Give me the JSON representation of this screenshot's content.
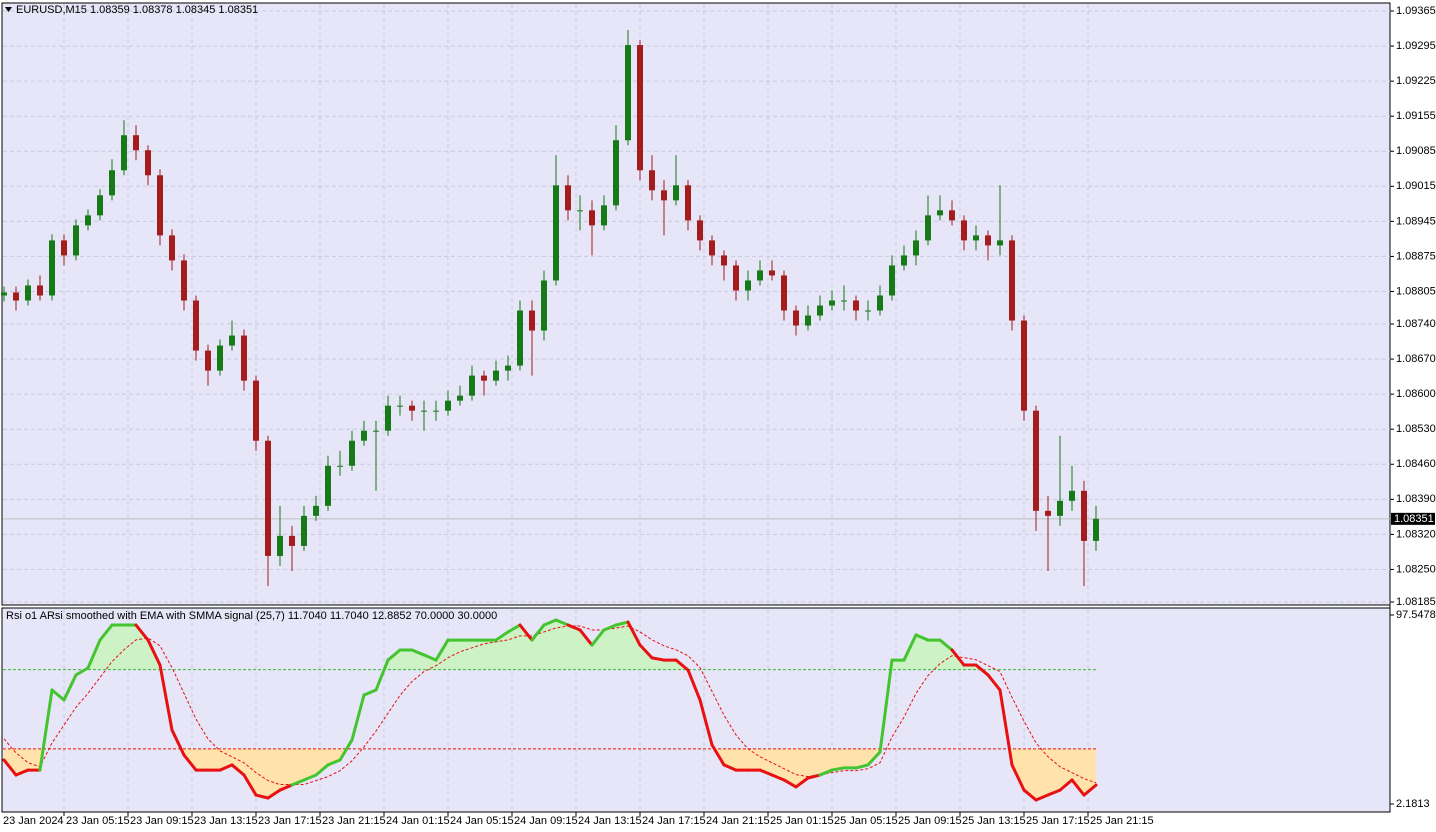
{
  "chart_data": [
    {
      "type": "candlestick",
      "title": "EURUSD,M15  1.08359 1.08378 1.08345 1.08351",
      "open": [
        1.08797,
        1.08803,
        1.08787,
        1.08817,
        1.08797,
        1.08907,
        1.08877,
        1.08937,
        1.08957,
        1.08997,
        1.09047,
        1.09117,
        1.09087,
        1.09037,
        1.08917,
        1.08867,
        1.08787,
        1.08687,
        1.08647,
        1.08697,
        1.08717,
        1.08627,
        1.08507,
        1.08277,
        1.08317,
        1.08297,
        1.08357,
        1.08377,
        1.08457,
        1.08457,
        1.08507,
        1.08527,
        1.08527,
        1.08577,
        1.08577,
        1.08567,
        1.08567,
        1.08567,
        1.08587,
        1.08597,
        1.08637,
        1.08627,
        1.08647,
        1.08657,
        1.08767,
        1.08727,
        1.08827,
        1.09017,
        1.08967,
        1.08967,
        1.08937,
        1.08977,
        1.09107,
        1.09297,
        1.09047,
        1.09007,
        1.08987,
        1.09017,
        1.08947,
        1.08907,
        1.08877,
        1.08857,
        1.08807,
        1.08827,
        1.08847,
        1.08837,
        1.08767,
        1.08737,
        1.08757,
        1.08777,
        1.08787,
        1.08787,
        1.08767,
        1.08767,
        1.08797,
        1.08857,
        1.08877,
        1.08907,
        1.08957,
        1.08967,
        1.08947,
        1.08907,
        1.08917,
        1.08897,
        1.08907,
        1.08747,
        1.08567,
        1.08367,
        1.08357,
        1.08387,
        1.08407,
        1.08307
      ],
      "high": [
        1.08815,
        1.08815,
        1.08829,
        1.08837,
        1.08919,
        1.08919,
        1.08949,
        1.08969,
        1.09009,
        1.09069,
        1.09147,
        1.09137,
        1.09097,
        1.09049,
        1.08929,
        1.08879,
        1.08797,
        1.08699,
        1.08709,
        1.08747,
        1.08729,
        1.08637,
        1.08517,
        1.08377,
        1.08337,
        1.08377,
        1.08397,
        1.08477,
        1.08487,
        1.08527,
        1.08547,
        1.08547,
        1.08597,
        1.08597,
        1.08587,
        1.08587,
        1.08587,
        1.08607,
        1.08617,
        1.08657,
        1.08647,
        1.08667,
        1.08677,
        1.08787,
        1.08787,
        1.08847,
        1.09077,
        1.09037,
        1.08997,
        1.08987,
        1.08997,
        1.09137,
        1.09327,
        1.09307,
        1.09077,
        1.09027,
        1.09077,
        1.09027,
        1.08957,
        1.08917,
        1.08887,
        1.08867,
        1.08847,
        1.08867,
        1.08867,
        1.08847,
        1.08777,
        1.08777,
        1.08797,
        1.08807,
        1.08817,
        1.08797,
        1.08787,
        1.08817,
        1.08877,
        1.08897,
        1.08927,
        1.08997,
        1.08997,
        1.08987,
        1.08957,
        1.08937,
        1.08927,
        1.09017,
        1.08917,
        1.08757,
        1.08577,
        1.08397,
        1.08517,
        1.08457,
        1.08427,
        1.08377
      ],
      "low": [
        1.08785,
        1.08767,
        1.08777,
        1.08787,
        1.08787,
        1.08857,
        1.08867,
        1.08927,
        1.08947,
        1.08987,
        1.09037,
        1.09067,
        1.09017,
        1.08897,
        1.08847,
        1.08767,
        1.08667,
        1.08617,
        1.08637,
        1.08687,
        1.08607,
        1.08487,
        1.08217,
        1.08257,
        1.08247,
        1.08287,
        1.08347,
        1.08367,
        1.08437,
        1.08447,
        1.08497,
        1.08407,
        1.08517,
        1.08557,
        1.08547,
        1.08527,
        1.08547,
        1.08557,
        1.08577,
        1.08587,
        1.08597,
        1.08617,
        1.08627,
        1.08647,
        1.08637,
        1.08707,
        1.08817,
        1.08947,
        1.08927,
        1.08877,
        1.08927,
        1.08967,
        1.09097,
        1.09027,
        1.08987,
        1.08917,
        1.08977,
        1.08927,
        1.08887,
        1.08857,
        1.08827,
        1.08787,
        1.08787,
        1.08817,
        1.08827,
        1.08747,
        1.08717,
        1.08727,
        1.08747,
        1.08767,
        1.08767,
        1.08747,
        1.08747,
        1.08757,
        1.08787,
        1.08847,
        1.08857,
        1.08897,
        1.08947,
        1.08937,
        1.08887,
        1.08887,
        1.08867,
        1.08877,
        1.08727,
        1.08547,
        1.08327,
        1.08247,
        1.08337,
        1.08367,
        1.08217,
        1.08287
      ],
      "close": [
        1.08803,
        1.08787,
        1.08817,
        1.08797,
        1.08907,
        1.08877,
        1.08937,
        1.08957,
        1.08997,
        1.09047,
        1.09117,
        1.09087,
        1.09037,
        1.08917,
        1.08867,
        1.08787,
        1.08687,
        1.08647,
        1.08697,
        1.08717,
        1.08627,
        1.08507,
        1.08277,
        1.08317,
        1.08297,
        1.08357,
        1.08377,
        1.08457,
        1.08457,
        1.08507,
        1.08527,
        1.08527,
        1.08577,
        1.08577,
        1.08567,
        1.08567,
        1.08567,
        1.08587,
        1.08597,
        1.08637,
        1.08627,
        1.08647,
        1.08657,
        1.08767,
        1.08727,
        1.08827,
        1.09017,
        1.08967,
        1.08967,
        1.08937,
        1.08977,
        1.09107,
        1.09297,
        1.09047,
        1.09007,
        1.08987,
        1.09017,
        1.08947,
        1.08907,
        1.08877,
        1.08857,
        1.08807,
        1.08827,
        1.08847,
        1.08837,
        1.08767,
        1.08737,
        1.08757,
        1.08777,
        1.08787,
        1.08787,
        1.08767,
        1.08767,
        1.08797,
        1.08857,
        1.08877,
        1.08907,
        1.08957,
        1.08967,
        1.08947,
        1.08907,
        1.08917,
        1.08897,
        1.08907,
        1.08747,
        1.08567,
        1.08367,
        1.08357,
        1.08387,
        1.08407,
        1.08307,
        1.08351
      ],
      "up_color": "#167a16",
      "down_color": "#a41c1c",
      "ylim": [
        1.08179,
        1.09381
      ],
      "yticks": [
        1.08185,
        {
          "value": 1.0825,
          "label": "1.08250"
        },
        {
          "value": 1.0832,
          "label": "1.08320"
        },
        {
          "value": 1.0839,
          "label": "1.08390"
        },
        {
          "value": 1.0846,
          "label": "1.08460"
        },
        {
          "value": 1.0853,
          "label": "1.08530"
        },
        {
          "value": 1.086,
          "label": "1.08600"
        },
        {
          "value": 1.0867,
          "label": "1.08670"
        },
        {
          "value": 1.0874,
          "label": "1.08740"
        },
        1.08805,
        1.08875,
        1.08945,
        1.09015,
        1.09085,
        1.09155,
        1.09225,
        1.09295,
        1.09365
      ],
      "last_price": 1.08351,
      "grid": true
    },
    {
      "type": "line",
      "title": "Rsi o1  ARsi smoothed with EMA with SMMA signal (25,7) 11.7040 11.7040 12.8852 70.0000 30.0000",
      "series": [
        {
          "up_color": "#44c42e",
          "down_color": "#e81010",
          "values": [
            24.4,
            16.8,
            19.3,
            19.3,
            59.7,
            54.7,
            67.3,
            70.8,
            84.9,
            92.5,
            92.5,
            92.5,
            84.9,
            72.3,
            39.5,
            26.9,
            19.3,
            19.3,
            19.3,
            21.9,
            16.8,
            6.7,
            5.2,
            9.2,
            11.8,
            14.3,
            16.8,
            21.9,
            24.4,
            34.5,
            57.2,
            59.7,
            74.8,
            79.9,
            79.9,
            77.4,
            74.8,
            84.9,
            84.9,
            84.9,
            84.9,
            84.9,
            89.0,
            92.5,
            84.9,
            92.5,
            95.0,
            92.5,
            90.0,
            82.4,
            90.0,
            92.5,
            94.0,
            82.4,
            75.9,
            74.8,
            74.8,
            69.8,
            54.7,
            32.0,
            21.9,
            19.3,
            19.3,
            19.3,
            16.8,
            14.3,
            10.8,
            15.3,
            16.8,
            19.3,
            20.4,
            20.4,
            21.9,
            28.4,
            74.8,
            74.8,
            87.5,
            84.9,
            84.9,
            79.9,
            72.3,
            72.3,
            67.3,
            59.7,
            21.9,
            9.2,
            4.2,
            6.7,
            9.2,
            14.3,
            6.7,
            11.704
          ]
        },
        {
          "color": "#e81010",
          "dashed": true,
          "values": [
            35,
            28,
            23,
            21,
            33,
            42,
            51,
            58,
            66,
            74,
            80,
            85,
            86,
            82,
            71,
            58,
            45,
            35,
            29,
            26,
            23,
            18,
            14,
            12,
            12,
            12,
            14,
            16,
            19,
            24,
            31,
            39,
            48,
            57,
            64,
            69,
            72,
            76,
            79,
            81,
            83,
            84,
            85,
            87,
            87,
            89,
            91,
            92,
            92,
            90,
            90,
            91,
            92,
            89,
            85,
            82,
            80,
            77,
            71,
            59,
            47,
            37,
            30,
            26,
            23,
            20,
            17,
            16,
            17,
            18,
            19,
            19,
            20,
            23,
            36,
            46,
            58,
            67,
            73,
            77,
            76,
            75,
            72,
            69,
            56,
            44,
            33,
            26,
            21,
            18,
            15,
            12.8852
          ]
        }
      ],
      "levels": [
        {
          "value": 70,
          "color": "#3cb83c",
          "fill": "#cdf2c6"
        },
        {
          "value": 30,
          "color": "#e81010",
          "fill": "#ffe3ab"
        }
      ],
      "ylim": [
        2.1813,
        97.5478
      ],
      "yticks": [
        2.1813,
        97.5478
      ],
      "x_labels": [
        "23 Jan 2024",
        "23 Jan 05:15",
        "23 Jan 09:15",
        "23 Jan 13:15",
        "23 Jan 17:15",
        "23 Jan 21:15",
        "24 Jan 01:15",
        "24 Jan 05:15",
        "24 Jan 09:15",
        "24 Jan 13:15",
        "24 Jan 17:15",
        "24 Jan 21:15",
        "25 Jan 01:15",
        "25 Jan 05:15",
        "25 Jan 09:15",
        "25 Jan 13:15",
        "25 Jan 17:15",
        "25 Jan 21:15"
      ],
      "grid": true
    }
  ]
}
